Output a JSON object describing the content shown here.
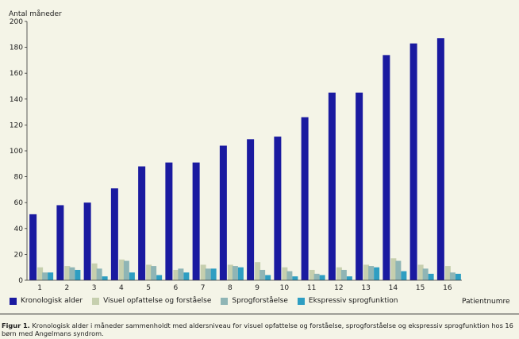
{
  "chart_data": {
    "type": "bar",
    "ylabel": "Antal måneder",
    "xlabel": "Patientnumre",
    "ylim": [
      0,
      200
    ],
    "yticks": [
      0,
      20,
      40,
      60,
      80,
      100,
      120,
      140,
      160,
      180,
      200
    ],
    "categories": [
      "1",
      "2",
      "3",
      "4",
      "5",
      "6",
      "7",
      "8",
      "9",
      "10",
      "11",
      "12",
      "13",
      "14",
      "15",
      "16"
    ],
    "series": [
      {
        "name": "Kronologisk alder",
        "color": "#1a1aa0",
        "values": [
          51,
          58,
          60,
          71,
          88,
          91,
          91,
          104,
          109,
          111,
          126,
          145,
          145,
          174,
          183,
          187
        ]
      },
      {
        "name": "Visuel opfattelse og forståelse",
        "color": "#c6cfae",
        "values": [
          10,
          11,
          13,
          16,
          12,
          8,
          12,
          12,
          14,
          10,
          8,
          10,
          12,
          17,
          12,
          11
        ]
      },
      {
        "name": "Sprogforståelse",
        "color": "#8fb5b5",
        "values": [
          6,
          10,
          9,
          15,
          11,
          9,
          9,
          11,
          8,
          7,
          5,
          8,
          11,
          15,
          9,
          6
        ]
      },
      {
        "name": "Ekspressiv sprogfunktion",
        "color": "#2e9ec2",
        "values": [
          6,
          8,
          3,
          6,
          4,
          6,
          9,
          10,
          4,
          3,
          4,
          3,
          10,
          7,
          5,
          5
        ]
      }
    ]
  },
  "caption": {
    "label": "Figur 1.",
    "text": "Kronologisk alder i måneder sammenholdt med aldersniveau for visuel opfattelse og forståelse, sprogforståelse og ekspressiv sprogfunktion hos 16 børn med Angelmans syndrom."
  }
}
